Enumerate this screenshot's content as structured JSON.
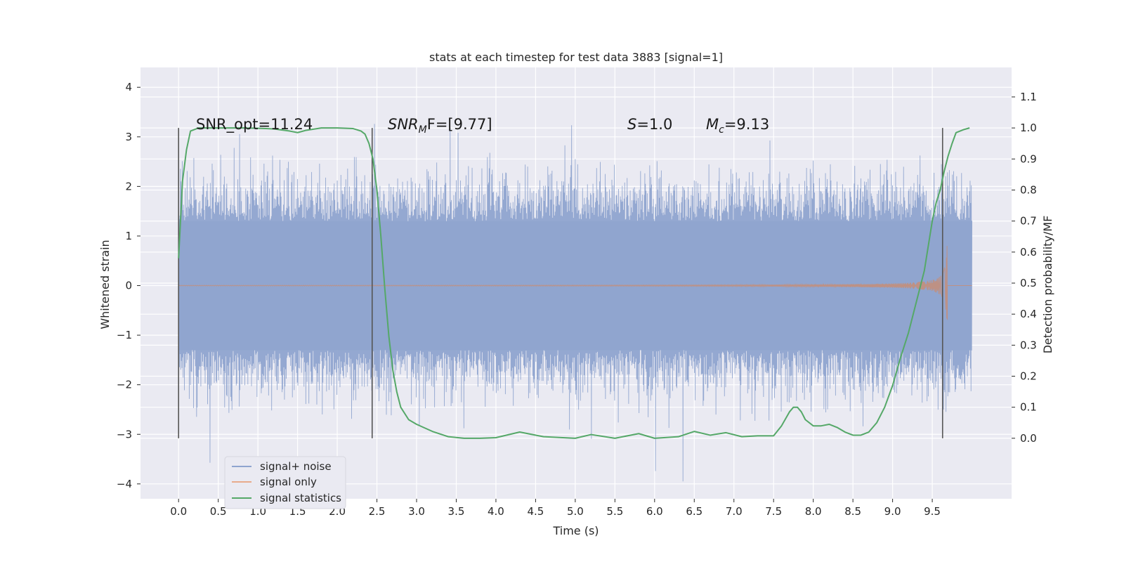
{
  "chart_data": {
    "type": "line",
    "title": "stats at each timestep for test data 3883 [signal=1]",
    "xlabel": "Time (s)",
    "ylabel_left": "Whitened strain",
    "ylabel_right": "Detection probability/MF",
    "xlim": [
      -0.48,
      10.5
    ],
    "ylim_left": [
      -4.3,
      4.4
    ],
    "ylim_right": [
      -0.195,
      1.195
    ],
    "x_ticks": [
      "0.0",
      "0.5",
      "1.0",
      "1.5",
      "2.0",
      "2.5",
      "3.0",
      "3.5",
      "4.0",
      "4.5",
      "5.0",
      "5.5",
      "6.0",
      "6.5",
      "7.0",
      "7.5",
      "8.0",
      "8.5",
      "9.0",
      "9.5"
    ],
    "y_ticks_left": [
      "−4",
      "−3",
      "−2",
      "−1",
      "0",
      "1",
      "2",
      "3",
      "4"
    ],
    "y_ticks_right": [
      "0.0",
      "0.1",
      "0.2",
      "0.3",
      "0.4",
      "0.5",
      "0.6",
      "0.7",
      "0.8",
      "0.9",
      "1.0",
      "1.1"
    ],
    "grid": true,
    "legend_position": "lower-left",
    "colors": {
      "background": "#eaeaf2",
      "grid": "#ffffff",
      "signal_noise": "#8fa4cf",
      "signal_only": "#dd8452",
      "statistics": "#55a868",
      "vline": "#555555"
    },
    "annotations": [
      {
        "id": "snr-opt",
        "text": "SNR_opt=11.24",
        "x": 0.2
      },
      {
        "id": "snr-mf",
        "label_main": "SNR",
        "label_sub": "M",
        "label_rest": "F=[9.77]",
        "x": 2.6
      },
      {
        "id": "s-value",
        "label_main": "S",
        "label_rest": "=1.0",
        "x": 5.6
      },
      {
        "id": "mc-value",
        "label_main": "M",
        "label_sub": "c",
        "label_rest": "=9.13",
        "x": 6.6
      }
    ],
    "vertical_markers": [
      0.0,
      2.44,
      9.63
    ],
    "noise_envelope": {
      "x_start": 0.0,
      "x_end": 10.0,
      "core_amplitude": 1.3,
      "peak_min": -3.95,
      "peak_max": 4.05
    },
    "signal_only": {
      "x_start": 0.0,
      "x_end": 9.69,
      "peak_amplitude": 1.45
    },
    "series": [
      {
        "name": "signal statistics",
        "x": [
          0.0,
          0.05,
          0.1,
          0.15,
          0.25,
          0.5,
          0.8,
          1.0,
          1.2,
          1.4,
          1.5,
          1.6,
          1.8,
          2.0,
          2.2,
          2.3,
          2.35,
          2.4,
          2.45,
          2.5,
          2.55,
          2.6,
          2.65,
          2.7,
          2.75,
          2.8,
          2.9,
          3.0,
          3.2,
          3.4,
          3.6,
          3.8,
          4.0,
          4.3,
          4.6,
          5.0,
          5.2,
          5.5,
          5.8,
          6.0,
          6.3,
          6.5,
          6.7,
          6.9,
          7.1,
          7.3,
          7.5,
          7.6,
          7.7,
          7.75,
          7.8,
          7.85,
          7.9,
          8.0,
          8.1,
          8.2,
          8.3,
          8.4,
          8.5,
          8.6,
          8.7,
          8.8,
          8.9,
          9.0,
          9.1,
          9.2,
          9.3,
          9.4,
          9.5,
          9.55,
          9.6,
          9.65,
          9.7,
          9.75,
          9.8,
          9.9,
          9.97
        ],
        "values": [
          0.58,
          0.83,
          0.93,
          0.99,
          1.0,
          1.0,
          1.0,
          0.999,
          0.997,
          0.99,
          0.985,
          0.992,
          1.0,
          1.0,
          0.998,
          0.99,
          0.98,
          0.95,
          0.9,
          0.8,
          0.65,
          0.48,
          0.33,
          0.22,
          0.15,
          0.1,
          0.06,
          0.045,
          0.022,
          0.005,
          0.0,
          0.0,
          0.002,
          0.02,
          0.005,
          0.0,
          0.012,
          0.0,
          0.015,
          0.0,
          0.005,
          0.022,
          0.01,
          0.018,
          0.005,
          0.008,
          0.008,
          0.04,
          0.085,
          0.1,
          0.1,
          0.085,
          0.06,
          0.04,
          0.04,
          0.045,
          0.035,
          0.02,
          0.01,
          0.01,
          0.02,
          0.05,
          0.1,
          0.17,
          0.26,
          0.34,
          0.44,
          0.54,
          0.7,
          0.76,
          0.8,
          0.86,
          0.91,
          0.95,
          0.985,
          0.995,
          1.0
        ]
      },
      {
        "name": "signal+ noise"
      },
      {
        "name": "signal only"
      }
    ]
  }
}
